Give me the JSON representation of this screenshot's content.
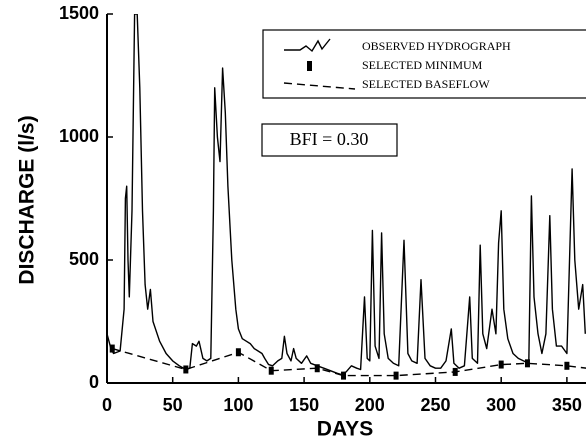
{
  "chart_data": {
    "type": "line",
    "x_label": "DAYS",
    "y_label": "DISCHARGE (l/s)",
    "annotation": "BFI = 0.30",
    "xlim": [
      0,
      365
    ],
    "ylim": [
      0,
      1500
    ],
    "xticks": [
      0,
      50,
      100,
      150,
      200,
      250,
      300,
      350
    ],
    "yticks": [
      0,
      500,
      1000,
      1500
    ],
    "series": [
      {
        "name": "OBSERVED HYDROGRAPH",
        "color": "#000000",
        "style": "solid",
        "x": [
          0,
          3,
          5,
          10,
          13,
          14,
          15,
          16,
          17,
          19,
          21,
          23,
          25,
          27,
          29,
          31,
          33,
          35,
          40,
          45,
          50,
          55,
          60,
          63,
          65,
          68,
          70,
          73,
          76,
          79,
          81,
          82,
          84,
          86,
          88,
          90,
          92,
          95,
          98,
          100,
          103,
          106,
          109,
          112,
          115,
          118,
          120,
          123,
          126,
          130,
          133,
          135,
          137,
          140,
          142,
          144,
          148,
          152,
          155,
          160,
          165,
          170,
          175,
          178,
          182,
          186,
          190,
          193,
          196,
          198,
          200,
          202,
          204,
          207,
          209,
          211,
          214,
          218,
          222,
          226,
          229,
          232,
          236,
          239,
          242,
          246,
          250,
          254,
          258,
          262,
          264,
          268,
          272,
          276,
          278,
          282,
          284,
          286,
          289,
          293,
          296,
          298,
          300,
          302,
          305,
          309,
          313,
          317,
          321,
          323,
          325,
          328,
          331,
          334,
          337,
          339,
          342,
          346,
          350,
          354,
          356,
          359,
          362,
          364
        ],
        "values": [
          200,
          140,
          120,
          130,
          300,
          750,
          800,
          500,
          350,
          700,
          1500,
          1500,
          1200,
          700,
          400,
          300,
          380,
          250,
          170,
          120,
          90,
          70,
          55,
          60,
          160,
          150,
          170,
          100,
          90,
          100,
          700,
          1200,
          1000,
          900,
          1280,
          1100,
          800,
          500,
          300,
          220,
          180,
          170,
          160,
          140,
          130,
          120,
          100,
          75,
          70,
          90,
          100,
          190,
          120,
          90,
          140,
          100,
          80,
          110,
          80,
          70,
          60,
          50,
          40,
          35,
          45,
          70,
          60,
          55,
          350,
          100,
          90,
          620,
          150,
          100,
          610,
          200,
          100,
          80,
          70,
          580,
          120,
          90,
          80,
          420,
          100,
          70,
          60,
          60,
          90,
          220,
          80,
          60,
          70,
          350,
          100,
          80,
          560,
          200,
          140,
          300,
          200,
          570,
          700,
          300,
          180,
          120,
          100,
          90,
          80,
          760,
          350,
          200,
          120,
          200,
          680,
          300,
          150,
          150,
          120,
          870,
          500,
          300,
          400,
          200
        ]
      },
      {
        "name": "SELECTED MINIMUM",
        "color": "#000000",
        "style": "markers",
        "x": [
          4,
          60,
          100,
          125,
          160,
          180,
          220,
          265,
          300,
          320,
          350
        ],
        "values": [
          140,
          55,
          125,
          50,
          60,
          30,
          30,
          45,
          75,
          80,
          70
        ]
      },
      {
        "name": "SELECTED BASEFLOW",
        "color": "#000000",
        "style": "dashed",
        "x": [
          4,
          60,
          100,
          125,
          160,
          180,
          220,
          265,
          300,
          320,
          350,
          365
        ],
        "values": [
          140,
          55,
          125,
          50,
          60,
          30,
          30,
          45,
          75,
          80,
          70,
          60
        ]
      }
    ]
  }
}
